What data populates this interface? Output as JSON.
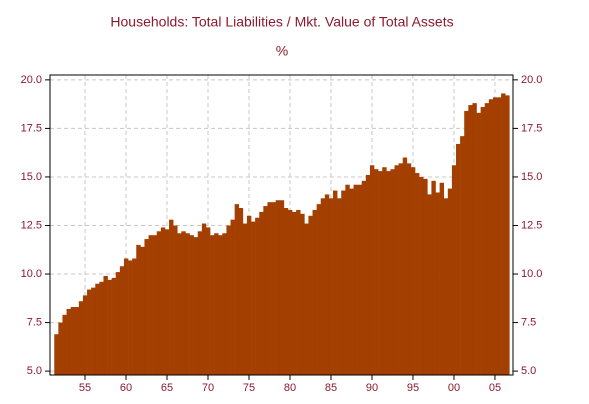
{
  "chart_data": {
    "type": "bar",
    "title": "Households: Total Liabilities / Mkt. Value of Total Assets",
    "subtitle": "%",
    "color": "#a33f00",
    "bar_width": 0.5,
    "x": [
      1951.5,
      1952,
      1952.5,
      1953,
      1953.5,
      1954,
      1954.5,
      1955,
      1955.5,
      1956,
      1956.5,
      1957,
      1957.5,
      1958,
      1958.5,
      1959,
      1959.5,
      1960,
      1960.5,
      1961,
      1961.5,
      1962,
      1962.5,
      1963,
      1963.5,
      1964,
      1964.5,
      1965,
      1965.5,
      1966,
      1966.5,
      1967,
      1967.5,
      1968,
      1968.5,
      1969,
      1969.5,
      1970,
      1970.5,
      1971,
      1971.5,
      1972,
      1972.5,
      1973,
      1973.5,
      1974,
      1974.5,
      1975,
      1975.5,
      1976,
      1976.5,
      1977,
      1977.5,
      1978,
      1978.5,
      1979,
      1979.5,
      1980,
      1980.5,
      1981,
      1981.5,
      1982,
      1982.5,
      1983,
      1983.5,
      1984,
      1984.5,
      1985,
      1985.5,
      1986,
      1986.5,
      1987,
      1987.5,
      1988,
      1988.5,
      1989,
      1989.5,
      1990,
      1990.5,
      1991,
      1991.5,
      1992,
      1992.5,
      1993,
      1993.5,
      1994,
      1994.5,
      1995,
      1995.5,
      1996,
      1996.5,
      1997,
      1997.5,
      1998,
      1998.5,
      1999,
      1999.5,
      2000,
      2000.5,
      2001,
      2001.5,
      2002,
      2002.5,
      2003,
      2003.5,
      2004,
      2004.5,
      2005,
      2005.5,
      2006,
      2006.5
    ],
    "values": [
      6.9,
      7.5,
      7.9,
      8.2,
      8.3,
      8.3,
      8.6,
      8.9,
      9.2,
      9.3,
      9.5,
      9.6,
      9.9,
      9.7,
      9.8,
      10.1,
      10.4,
      10.8,
      10.7,
      10.8,
      11.5,
      11.4,
      11.8,
      12.0,
      12.0,
      12.2,
      12.4,
      12.3,
      12.8,
      12.5,
      12.1,
      12.2,
      12.1,
      12.0,
      11.9,
      12.2,
      12.6,
      12.4,
      12.0,
      12.1,
      12.0,
      12.1,
      12.5,
      12.8,
      13.6,
      13.4,
      12.6,
      13.0,
      12.7,
      12.9,
      13.2,
      13.5,
      13.7,
      13.7,
      13.8,
      13.8,
      13.4,
      13.3,
      13.2,
      13.3,
      13.1,
      12.6,
      13.0,
      13.3,
      13.6,
      13.9,
      14.1,
      13.9,
      14.3,
      13.9,
      14.3,
      14.6,
      14.4,
      14.6,
      14.6,
      14.8,
      15.1,
      15.6,
      15.4,
      15.3,
      15.5,
      15.3,
      15.4,
      15.6,
      15.7,
      16.0,
      15.7,
      15.5,
      15.2,
      15.0,
      14.9,
      14.1,
      14.8,
      14.2,
      14.7,
      13.9,
      14.4,
      15.6,
      16.7,
      17.1,
      18.4,
      18.7,
      18.8,
      18.3,
      18.6,
      18.8,
      19.0,
      19.1,
      19.1,
      19.3,
      19.2
    ],
    "xlim": [
      1950.73,
      2007.2
    ],
    "xticks": [
      {
        "value": 1955,
        "label": "55"
      },
      {
        "value": 1960,
        "label": "60"
      },
      {
        "value": 1965,
        "label": "65"
      },
      {
        "value": 1970,
        "label": "70"
      },
      {
        "value": 1975,
        "label": "75"
      },
      {
        "value": 1980,
        "label": "80"
      },
      {
        "value": 1985,
        "label": "85"
      },
      {
        "value": 1990,
        "label": "90"
      },
      {
        "value": 1995,
        "label": "95"
      },
      {
        "value": 2000,
        "label": "00"
      },
      {
        "value": 2005,
        "label": "05"
      }
    ],
    "ylim": [
      4.8,
      20.25
    ],
    "yticks": [
      {
        "value": 5,
        "label": "5.0"
      },
      {
        "value": 7.5,
        "label": "7.5"
      },
      {
        "value": 10,
        "label": "10.0"
      },
      {
        "value": 12.5,
        "label": "12.5"
      },
      {
        "value": 15,
        "label": "15.0"
      },
      {
        "value": 17.5,
        "label": "17.5"
      },
      {
        "value": 20,
        "label": "20.0"
      }
    ],
    "grid": true
  }
}
